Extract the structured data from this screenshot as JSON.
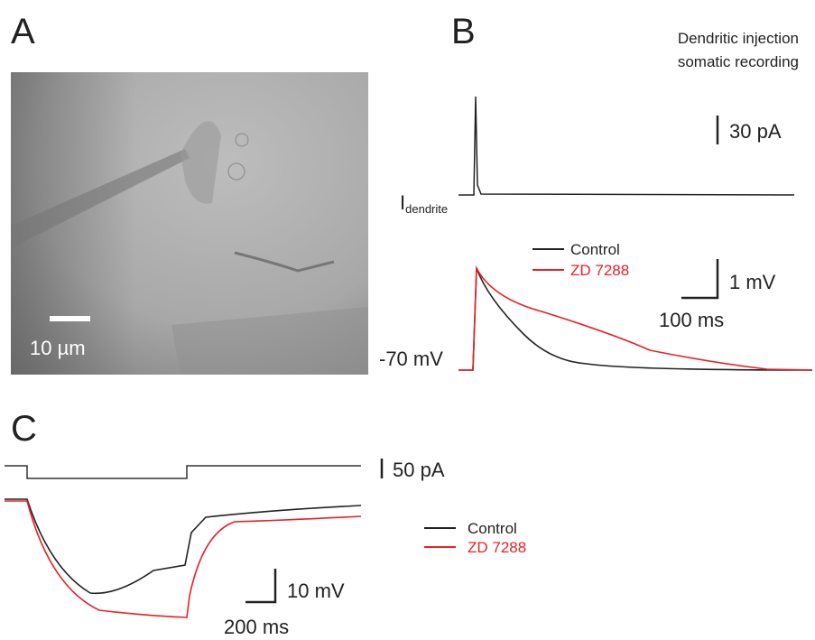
{
  "panels": {
    "a": {
      "label": "A",
      "scale_bar": "10 µm"
    },
    "b": {
      "label": "B",
      "condition": [
        "Dendritic injection",
        "somatic recording"
      ],
      "current_scale": "30 pA",
      "current_label": "I",
      "current_subscript": "dendrite",
      "legend": [
        "Control",
        "ZD 7288"
      ],
      "voltage_scale": "1 mV",
      "time_scale": "100 ms",
      "baseline": "-70 mV"
    },
    "c": {
      "label": "C",
      "current_scale": "50 pA",
      "legend": [
        "Control",
        "ZD 7288"
      ],
      "voltage_scale": "10 mV",
      "time_scale": "200 ms"
    }
  }
}
